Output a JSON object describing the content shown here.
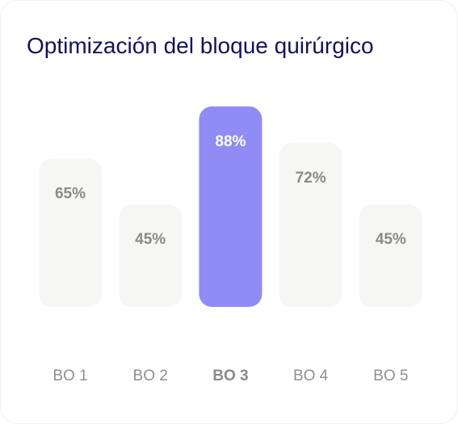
{
  "chart_title": "Optimización del bloque quirúrgico",
  "colors": {
    "bar_default": "#f6f6f4",
    "bar_highlight": "#8f8cf5",
    "value_default": "#8a8a8a",
    "value_highlight": "#ffffff",
    "label_default": "#8f8f8f",
    "label_highlight": "#8a8a8a",
    "title": "#15115a"
  },
  "chart_data": {
    "type": "bar",
    "title": "Optimización del bloque quirúrgico",
    "categories": [
      "BO 1",
      "BO 2",
      "BO 3",
      "BO 4",
      "BO 5"
    ],
    "values": [
      65,
      45,
      88,
      72,
      45
    ],
    "value_labels": [
      "65%",
      "45%",
      "88%",
      "72%",
      "45%"
    ],
    "highlighted_index": 2,
    "ylim": [
      0,
      100
    ],
    "grid": false,
    "legend": "none",
    "xlabel": "",
    "ylabel": ""
  }
}
